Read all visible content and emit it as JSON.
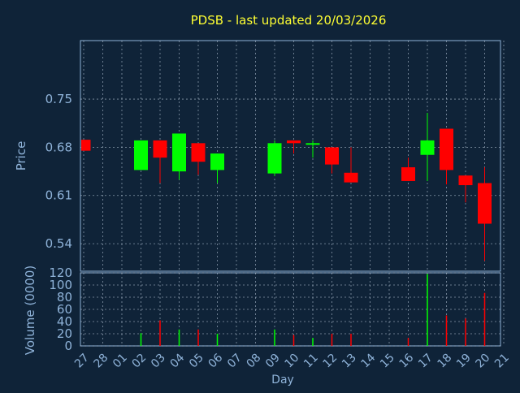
{
  "title": "PDSB - last updated 20/03/2026",
  "colors": {
    "background": "#0f2338",
    "title": "#ffff33",
    "axis_text": "#8fb3d9",
    "frame": "#8fb3d9",
    "grid": "#b8c8d8",
    "up": "#00ff00",
    "down": "#ff0000"
  },
  "chart_data": [
    {
      "type": "candlestick",
      "title": "PDSB - last updated 20/03/2026",
      "ylabel": "Price",
      "yticks": [
        0.54,
        0.61,
        0.68,
        0.75
      ],
      "ylim": [
        0.5,
        0.835
      ],
      "grid": true,
      "categories": [
        "27",
        "28",
        "01",
        "02",
        "03",
        "04",
        "05",
        "06",
        "07",
        "08",
        "09",
        "10",
        "11",
        "12",
        "13",
        "14",
        "15",
        "16",
        "17",
        "18",
        "19",
        "20",
        "21"
      ],
      "candles": [
        {
          "x": "27",
          "open": 0.691,
          "close": 0.675,
          "high": 0.691,
          "low": 0.675
        },
        {
          "x": "02",
          "open": 0.647,
          "close": 0.69,
          "high": 0.69,
          "low": 0.647
        },
        {
          "x": "03",
          "open": 0.69,
          "close": 0.665,
          "high": 0.69,
          "low": 0.628
        },
        {
          "x": "04",
          "open": 0.645,
          "close": 0.7,
          "high": 0.7,
          "low": 0.633
        },
        {
          "x": "05",
          "open": 0.686,
          "close": 0.659,
          "high": 0.686,
          "low": 0.64
        },
        {
          "x": "06",
          "open": 0.647,
          "close": 0.671,
          "high": 0.671,
          "low": 0.628
        },
        {
          "x": "09",
          "open": 0.642,
          "close": 0.686,
          "high": 0.69,
          "low": 0.638
        },
        {
          "x": "10",
          "open": 0.69,
          "close": 0.686,
          "high": 0.69,
          "low": 0.671
        },
        {
          "x": "11",
          "open": 0.684,
          "close": 0.686,
          "high": 0.69,
          "low": 0.665
        },
        {
          "x": "12",
          "open": 0.68,
          "close": 0.655,
          "high": 0.68,
          "low": 0.642
        },
        {
          "x": "13",
          "open": 0.643,
          "close": 0.629,
          "high": 0.68,
          "low": 0.629
        },
        {
          "x": "16",
          "open": 0.651,
          "close": 0.631,
          "high": 0.665,
          "low": 0.631
        },
        {
          "x": "17",
          "open": 0.669,
          "close": 0.69,
          "high": 0.73,
          "low": 0.631
        },
        {
          "x": "18",
          "open": 0.707,
          "close": 0.647,
          "high": 0.707,
          "low": 0.626
        },
        {
          "x": "19",
          "open": 0.639,
          "close": 0.625,
          "high": 0.639,
          "low": 0.6
        },
        {
          "x": "20",
          "open": 0.628,
          "close": 0.569,
          "high": 0.651,
          "low": 0.515
        }
      ]
    },
    {
      "type": "bar",
      "ylabel": "Volume (0000)",
      "xlabel": "Day",
      "yticks": [
        0,
        20,
        40,
        60,
        80,
        100,
        120
      ],
      "ylim": [
        0,
        120
      ],
      "grid": true,
      "categories": [
        "27",
        "28",
        "01",
        "02",
        "03",
        "04",
        "05",
        "06",
        "07",
        "08",
        "09",
        "10",
        "11",
        "12",
        "13",
        "14",
        "15",
        "16",
        "17",
        "18",
        "19",
        "20",
        "21"
      ],
      "bars": [
        {
          "x": "02",
          "value": 21,
          "dir": "up"
        },
        {
          "x": "03",
          "value": 42,
          "dir": "down"
        },
        {
          "x": "04",
          "value": 27,
          "dir": "up"
        },
        {
          "x": "05",
          "value": 27,
          "dir": "down"
        },
        {
          "x": "06",
          "value": 20,
          "dir": "up"
        },
        {
          "x": "09",
          "value": 27,
          "dir": "up"
        },
        {
          "x": "10",
          "value": 18,
          "dir": "down"
        },
        {
          "x": "11",
          "value": 13,
          "dir": "up"
        },
        {
          "x": "12",
          "value": 20,
          "dir": "down"
        },
        {
          "x": "13",
          "value": 20,
          "dir": "down"
        },
        {
          "x": "16",
          "value": 13,
          "dir": "down"
        },
        {
          "x": "17",
          "value": 118,
          "dir": "up"
        },
        {
          "x": "18",
          "value": 50,
          "dir": "down"
        },
        {
          "x": "19",
          "value": 45,
          "dir": "down"
        },
        {
          "x": "20",
          "value": 87,
          "dir": "down"
        }
      ]
    }
  ]
}
